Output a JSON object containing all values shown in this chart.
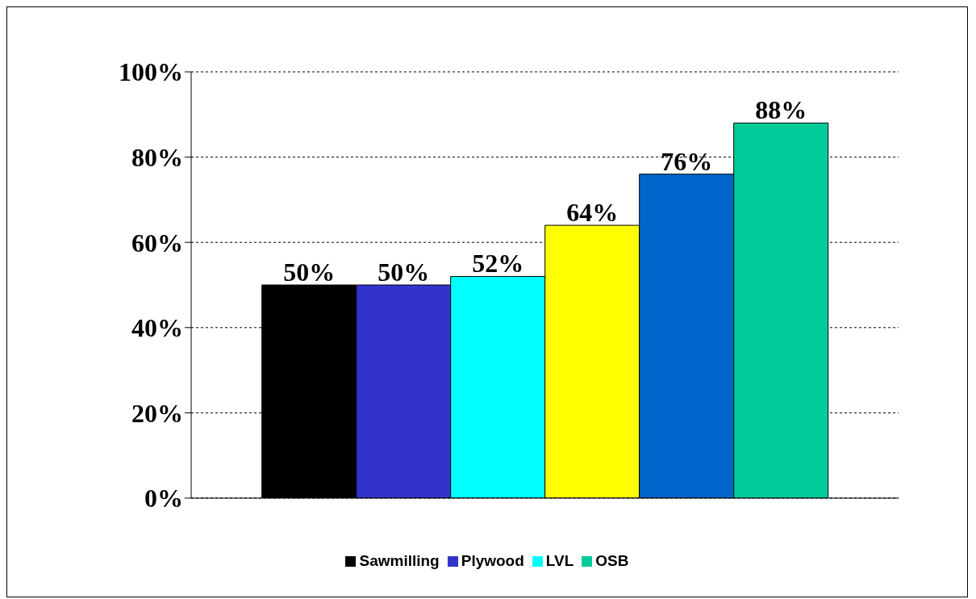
{
  "chart_data": {
    "type": "bar",
    "categories": [
      null
    ],
    "series": [
      {
        "name": "Sawmilling",
        "color": "#000000",
        "values": [
          50
        ],
        "value_labels": [
          "50%"
        ]
      },
      {
        "name": "Plywood",
        "color": "#3333cc",
        "values": [
          50
        ],
        "value_labels": [
          "50%"
        ]
      },
      {
        "name": "LVL",
        "color": "#00ffff",
        "values": [
          52
        ],
        "value_labels": [
          "52%"
        ]
      },
      {
        "color": "#ffff00",
        "values": [
          64
        ],
        "value_labels": [
          "64%"
        ]
      },
      {
        "color": "#0066cc",
        "values": [
          76
        ],
        "value_labels": [
          "76%"
        ]
      },
      {
        "name": "OSB",
        "color": "#00cc99",
        "values": [
          88
        ],
        "value_labels": [
          "88%"
        ]
      }
    ],
    "ylim": [
      0,
      100
    ],
    "yticks": [
      {
        "value": 0,
        "label": "0%"
      },
      {
        "value": 20,
        "label": "20%"
      },
      {
        "value": 40,
        "label": "40%"
      },
      {
        "value": 60,
        "label": "60%"
      },
      {
        "value": 80,
        "label": "80%"
      },
      {
        "value": 100,
        "label": "100%"
      }
    ],
    "grid": "y",
    "legend": "bottom"
  }
}
